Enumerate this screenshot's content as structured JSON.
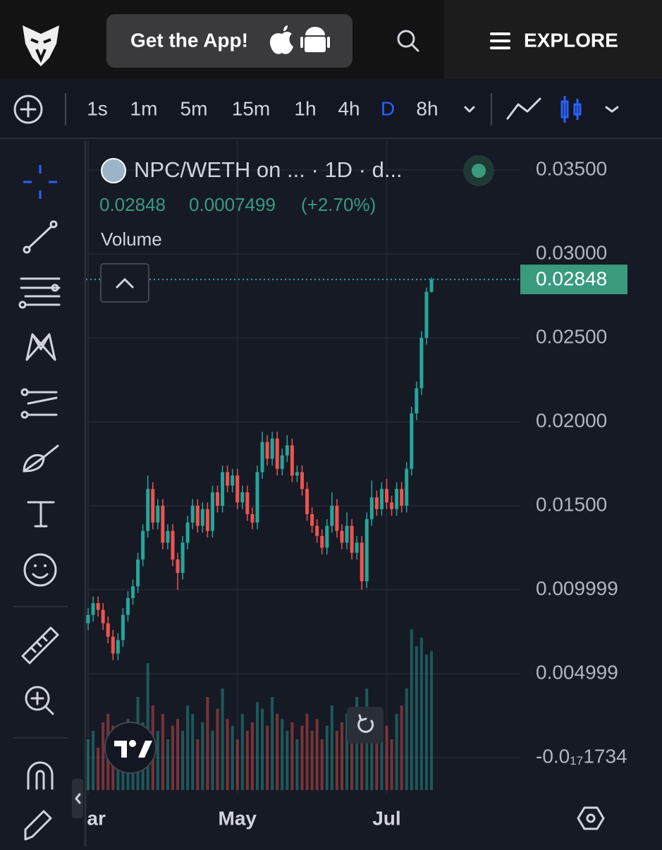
{
  "header": {
    "app_button": "Get the App!",
    "explore": "EXPLORE"
  },
  "toolbar": {
    "intervals": [
      "1s",
      "1m",
      "5m",
      "15m",
      "1h",
      "4h",
      "D",
      "8h"
    ],
    "active": "D"
  },
  "chart_data": {
    "type": "candlestick",
    "title": "NPC/WETH on ... · 1D · d...",
    "change": 0.0007499,
    "change_percent": {
      "value": 2.7,
      "label": "(+2.70%)"
    },
    "volume_label": "Volume",
    "categories": [
      "Mar",
      null,
      null,
      null,
      null,
      null,
      null,
      null,
      null,
      null,
      null,
      null,
      null,
      null,
      null,
      null,
      null,
      null,
      null,
      null,
      null,
      null,
      null,
      null,
      null,
      null,
      null,
      null,
      null,
      null,
      "May",
      null,
      null,
      null,
      null,
      null,
      null,
      null,
      null,
      null,
      null,
      null,
      null,
      null,
      null,
      null,
      null,
      null,
      null,
      null,
      null,
      null,
      null,
      null,
      null,
      null,
      null,
      null,
      null,
      null,
      "Jul",
      null,
      null,
      null,
      null,
      null,
      null,
      null,
      null,
      null
    ],
    "open": [
      0.008,
      0.0085,
      0.0092,
      0.0088,
      0.008,
      0.0072,
      0.0062,
      0.007,
      0.0085,
      0.0095,
      0.0102,
      0.0118,
      0.0135,
      0.016,
      0.014,
      0.015,
      0.0128,
      0.0135,
      0.0118,
      0.011,
      0.0128,
      0.014,
      0.015,
      0.0138,
      0.0148,
      0.0135,
      0.0158,
      0.015,
      0.017,
      0.0162,
      0.0168,
      0.0152,
      0.0158,
      0.0145,
      0.014,
      0.017,
      0.0188,
      0.0178,
      0.019,
      0.0172,
      0.018,
      0.0186,
      0.0168,
      0.017,
      0.016,
      0.0145,
      0.0138,
      0.0132,
      0.0125,
      0.0138,
      0.015,
      0.0135,
      0.0128,
      0.0138,
      0.0122,
      0.0128,
      0.0105,
      0.0142,
      0.0155,
      0.0148,
      0.016,
      0.0152,
      0.0148,
      0.016,
      0.015,
      0.0172,
      0.0205,
      0.022,
      0.025,
      0.02774
    ],
    "high": [
      0.0089,
      0.0096,
      0.0096,
      0.0092,
      0.0084,
      0.0076,
      0.0074,
      0.0089,
      0.0099,
      0.0106,
      0.0122,
      0.0139,
      0.0168,
      0.0164,
      0.0154,
      0.0154,
      0.0139,
      0.0139,
      0.0122,
      0.0132,
      0.0144,
      0.0154,
      0.0154,
      0.0152,
      0.0152,
      0.0162,
      0.0162,
      0.0174,
      0.0174,
      0.0172,
      0.0172,
      0.0162,
      0.0162,
      0.0149,
      0.0174,
      0.0194,
      0.0192,
      0.0194,
      0.0194,
      0.0184,
      0.0192,
      0.019,
      0.0174,
      0.0174,
      0.0164,
      0.0149,
      0.0142,
      0.0136,
      0.0142,
      0.0158,
      0.0154,
      0.0139,
      0.0146,
      0.0142,
      0.0132,
      0.0132,
      0.0146,
      0.0165,
      0.0159,
      0.0164,
      0.0166,
      0.0156,
      0.0164,
      0.0164,
      0.0176,
      0.0209,
      0.0224,
      0.0254,
      0.028,
      0.0286
    ],
    "low": [
      0.0076,
      0.0081,
      0.0084,
      0.0076,
      0.0068,
      0.0058,
      0.0058,
      0.0066,
      0.0081,
      0.0091,
      0.0098,
      0.0114,
      0.0131,
      0.0136,
      0.0136,
      0.0124,
      0.0124,
      0.0114,
      0.01,
      0.0106,
      0.0124,
      0.0136,
      0.0134,
      0.0134,
      0.0131,
      0.0131,
      0.0146,
      0.0146,
      0.0158,
      0.0158,
      0.0148,
      0.0148,
      0.0141,
      0.0136,
      0.0136,
      0.0166,
      0.0174,
      0.0174,
      0.0168,
      0.0168,
      0.0176,
      0.0164,
      0.0164,
      0.0156,
      0.0141,
      0.0134,
      0.0128,
      0.0121,
      0.0121,
      0.0134,
      0.0131,
      0.0124,
      0.0124,
      0.0118,
      0.0118,
      0.01,
      0.0101,
      0.0138,
      0.0144,
      0.0144,
      0.0148,
      0.0144,
      0.0144,
      0.0146,
      0.0146,
      0.0168,
      0.0201,
      0.0216,
      0.0246,
      0.0277
    ],
    "close": [
      0.0085,
      0.0092,
      0.0088,
      0.008,
      0.0072,
      0.0062,
      0.007,
      0.0085,
      0.0095,
      0.0102,
      0.0118,
      0.0135,
      0.016,
      0.014,
      0.015,
      0.0128,
      0.0135,
      0.0118,
      0.011,
      0.0128,
      0.014,
      0.015,
      0.0138,
      0.0148,
      0.0135,
      0.0158,
      0.015,
      0.017,
      0.0162,
      0.0168,
      0.0152,
      0.0158,
      0.0145,
      0.014,
      0.017,
      0.0188,
      0.0178,
      0.019,
      0.0172,
      0.018,
      0.0186,
      0.0168,
      0.017,
      0.016,
      0.0145,
      0.0138,
      0.0132,
      0.0125,
      0.0138,
      0.015,
      0.0135,
      0.0128,
      0.0138,
      0.0122,
      0.0128,
      0.0105,
      0.0142,
      0.0155,
      0.0148,
      0.016,
      0.0152,
      0.0148,
      0.016,
      0.015,
      0.0172,
      0.0205,
      0.022,
      0.025,
      0.02774,
      0.02848
    ],
    "volume": [
      30,
      35,
      25,
      40,
      45,
      38,
      30,
      35,
      42,
      28,
      55,
      40,
      75,
      50,
      35,
      45,
      30,
      38,
      42,
      35,
      50,
      45,
      30,
      40,
      55,
      35,
      48,
      60,
      42,
      38,
      30,
      45,
      35,
      40,
      52,
      48,
      38,
      55,
      45,
      42,
      35,
      40,
      30,
      38,
      45,
      35,
      42,
      30,
      38,
      50,
      35,
      40,
      45,
      38,
      55,
      48,
      60,
      42,
      35,
      40,
      38,
      30,
      45,
      50,
      60,
      95,
      85,
      90,
      80,
      82
    ],
    "volume_lim": [
      0,
      100
    ],
    "up_color": "#26a69a",
    "down_color": "#ef5350",
    "ylim": [
      -0.001933,
      0.03672
    ],
    "yticks": [
      {
        "value": 0.035,
        "label": "0.03500"
      },
      {
        "value": 0.03,
        "label": "0.03000"
      },
      {
        "value": 0.025,
        "label": "0.02500"
      },
      {
        "value": 0.02,
        "label": "0.02000"
      },
      {
        "value": 0.015,
        "label": "0.01500"
      },
      0.009999,
      0.004999,
      {
        "value": -1.734e-18,
        "label": "-0.0₁₇1734"
      }
    ],
    "grid": true
  }
}
